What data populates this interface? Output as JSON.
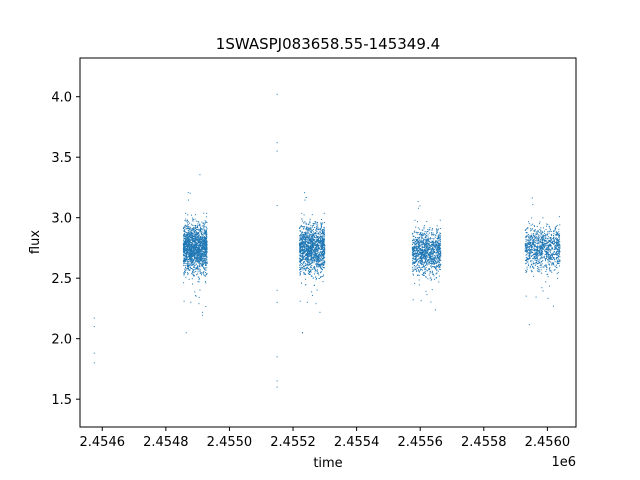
{
  "chart_data": {
    "type": "scatter",
    "title": "1SWASPJ083658.55-145349.4",
    "xlabel": "time",
    "ylabel": "flux",
    "x_offset_label": "1e6",
    "x_ticks": [
      "2.4546",
      "2.4548",
      "2.4550",
      "2.4552",
      "2.4554",
      "2.4556",
      "2.4558",
      "2.4560"
    ],
    "x_tick_values": [
      2454600,
      2454800,
      2455000,
      2455200,
      2455400,
      2455600,
      2455800,
      2456000
    ],
    "y_ticks": [
      "1.5",
      "2.0",
      "2.5",
      "3.0",
      "3.5",
      "4.0"
    ],
    "y_tick_values": [
      1.5,
      2.0,
      2.5,
      3.0,
      3.5,
      4.0
    ],
    "xlim": [
      2454530,
      2456090
    ],
    "ylim": [
      1.27,
      4.32
    ],
    "grid": false,
    "marker_color": "#1f77b4",
    "seasons": [
      {
        "x_start": 2454855,
        "x_end": 2454930,
        "y_center": 2.75,
        "y_spread": 0.42,
        "count": 1700
      },
      {
        "x_start": 2455220,
        "x_end": 2455300,
        "y_center": 2.75,
        "y_spread": 0.42,
        "count": 1700
      },
      {
        "x_start": 2455575,
        "x_end": 2455665,
        "y_center": 2.72,
        "y_spread": 0.38,
        "count": 1100
      },
      {
        "x_start": 2455930,
        "x_end": 2456040,
        "y_center": 2.75,
        "y_spread": 0.38,
        "count": 1000
      }
    ],
    "sparse_points": [
      {
        "x": 2454575,
        "y": 2.17
      },
      {
        "x": 2454575,
        "y": 2.1
      },
      {
        "x": 2454575,
        "y": 1.88
      },
      {
        "x": 2454575,
        "y": 1.8
      },
      {
        "x": 2455150,
        "y": 4.02
      },
      {
        "x": 2455150,
        "y": 3.62
      },
      {
        "x": 2455150,
        "y": 3.55
      },
      {
        "x": 2455150,
        "y": 3.1
      },
      {
        "x": 2455150,
        "y": 2.4
      },
      {
        "x": 2455150,
        "y": 2.3
      },
      {
        "x": 2455150,
        "y": 1.85
      },
      {
        "x": 2455150,
        "y": 1.65
      },
      {
        "x": 2455150,
        "y": 1.6
      }
    ]
  }
}
